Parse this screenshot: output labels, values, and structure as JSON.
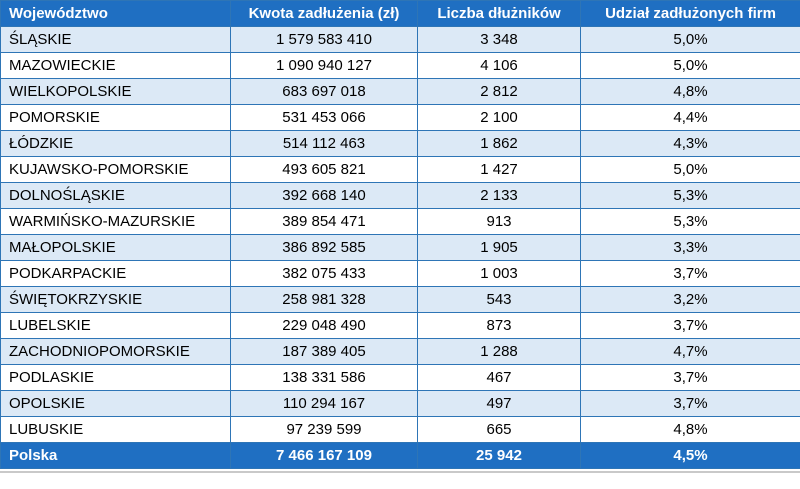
{
  "chart_data": {
    "type": "table",
    "title": "",
    "columns": [
      "Województwo",
      "Kwota zadłużenia (zł)",
      "Liczba dłużników",
      "Udział zadłużonych firm"
    ],
    "rows": [
      [
        "ŚLĄSKIE",
        "1 579 583 410",
        "3 348",
        "5,0%"
      ],
      [
        "MAZOWIECKIE",
        "1 090 940 127",
        "4 106",
        "5,0%"
      ],
      [
        "WIELKOPOLSKIE",
        "683 697 018",
        "2 812",
        "4,8%"
      ],
      [
        "POMORSKIE",
        "531 453 066",
        "2 100",
        "4,4%"
      ],
      [
        "ŁÓDZKIE",
        "514 112 463",
        "1 862",
        "4,3%"
      ],
      [
        "KUJAWSKO-POMORSKIE",
        "493 605 821",
        "1 427",
        "5,0%"
      ],
      [
        "DOLNOŚLĄSKIE",
        "392 668 140",
        "2 133",
        "5,3%"
      ],
      [
        "WARMIŃSKO-MAZURSKIE",
        "389 854 471",
        "913",
        "5,3%"
      ],
      [
        "MAŁOPOLSKIE",
        "386 892 585",
        "1 905",
        "3,3%"
      ],
      [
        "PODKARPACKIE",
        "382 075 433",
        "1 003",
        "3,7%"
      ],
      [
        "ŚWIĘTOKRZYSKIE",
        "258 981 328",
        "543",
        "3,2%"
      ],
      [
        "LUBELSKIE",
        "229 048 490",
        "873",
        "3,7%"
      ],
      [
        "ZACHODNIOPOMORSKIE",
        "187 389 405",
        "1 288",
        "4,7%"
      ],
      [
        "PODLASKIE",
        "138 331 586",
        "467",
        "3,7%"
      ],
      [
        "OPOLSKIE",
        "110 294 167",
        "497",
        "3,7%"
      ],
      [
        "LUBUSKIE",
        "97 239 599",
        "665",
        "4,8%"
      ]
    ],
    "footer": [
      "Polska",
      "7 466 167 109",
      "25 942",
      "4,5%"
    ]
  },
  "theme": {
    "header_bg": "#1F6FC2",
    "header_text": "#FFFFFF",
    "band_bg": "#DCE9F6",
    "border": "#2E75B6",
    "body_text": "#000000"
  }
}
